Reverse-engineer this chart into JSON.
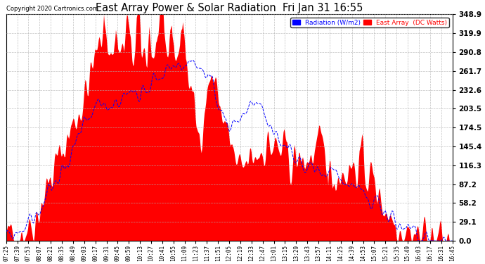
{
  "title": "East Array Power & Solar Radiation  Fri Jan 31 16:55",
  "copyright": "Copyright 2020 Cartronics.com",
  "legend_labels": [
    "Radiation (W/m2)",
    "East Array  (DC Watts)"
  ],
  "legend_colors": [
    "blue",
    "red"
  ],
  "ymax": 348.9,
  "yticks": [
    0.0,
    29.1,
    58.2,
    87.2,
    116.3,
    145.4,
    174.5,
    203.5,
    232.6,
    261.7,
    290.8,
    319.9,
    348.9
  ],
  "background_color": "#ffffff",
  "grid_color": "#b0b0b0",
  "fill_color": "red",
  "line_color": "blue",
  "x_labels": [
    "07:25",
    "07:39",
    "07:53",
    "08:07",
    "08:21",
    "08:35",
    "08:49",
    "09:03",
    "09:17",
    "09:31",
    "09:45",
    "09:59",
    "10:13",
    "10:27",
    "10:41",
    "10:55",
    "11:09",
    "11:23",
    "11:37",
    "11:51",
    "12:05",
    "12:19",
    "12:33",
    "12:47",
    "13:01",
    "13:15",
    "13:29",
    "13:43",
    "13:57",
    "14:11",
    "14:25",
    "14:39",
    "14:53",
    "15:07",
    "15:21",
    "15:35",
    "15:49",
    "16:03",
    "16:17",
    "16:31",
    "16:45"
  ]
}
